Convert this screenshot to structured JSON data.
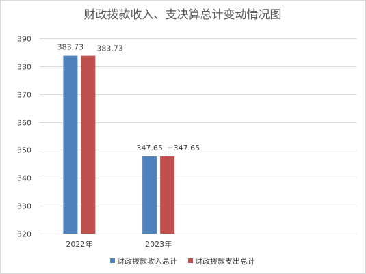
{
  "chart_data": {
    "type": "bar",
    "title": "财政拨款收入、支决算总计变动情况图",
    "categories": [
      "2022年",
      "2023年"
    ],
    "series": [
      {
        "name": "财政拨款收入总计",
        "values": [
          383.73,
          347.65
        ],
        "color": "#4f81bd"
      },
      {
        "name": "财政拨款支出总计",
        "values": [
          383.73,
          347.65
        ],
        "color": "#c0504d"
      }
    ],
    "data_labels": [
      [
        "383.73",
        "347.65"
      ],
      [
        "383.73",
        "347.65"
      ]
    ],
    "xlabel": "",
    "ylabel": "",
    "ylim": [
      320,
      390
    ],
    "yticks": [
      320,
      330,
      340,
      350,
      360,
      370,
      380,
      390
    ],
    "categories_slots": 4,
    "grid": true,
    "legend_position": "bottom"
  }
}
